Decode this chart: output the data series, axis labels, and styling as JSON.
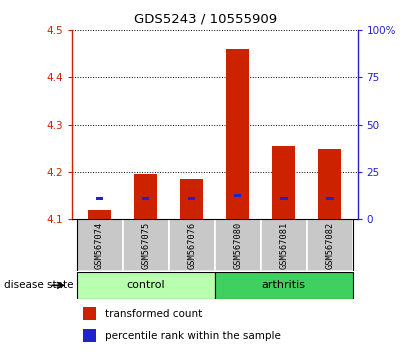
{
  "title": "GDS5243 / 10555909",
  "samples": [
    "GSM567074",
    "GSM567075",
    "GSM567076",
    "GSM567080",
    "GSM567081",
    "GSM567082"
  ],
  "red_values": [
    4.12,
    4.195,
    4.185,
    4.46,
    4.255,
    4.248
  ],
  "blue_values": [
    4.145,
    4.145,
    4.145,
    4.15,
    4.145,
    4.145
  ],
  "y_min": 4.1,
  "y_max": 4.5,
  "y_ticks_left": [
    4.1,
    4.2,
    4.3,
    4.4,
    4.5
  ],
  "y_ticks_right": [
    0,
    25,
    50,
    75,
    100
  ],
  "y_ticks_right_labels": [
    "0",
    "25",
    "50",
    "75",
    "100%"
  ],
  "groups": [
    {
      "label": "control",
      "indices": [
        0,
        1,
        2
      ],
      "color": "#b8ffb0"
    },
    {
      "label": "arthritis",
      "indices": [
        3,
        4,
        5
      ],
      "color": "#40d060"
    }
  ],
  "disease_state_label": "disease state",
  "bar_width": 0.5,
  "red_color": "#cc2200",
  "blue_color": "#2222cc",
  "legend": [
    {
      "color": "#cc2200",
      "label": "transformed count"
    },
    {
      "color": "#2222cc",
      "label": "percentile rank within the sample"
    }
  ],
  "axis_left_color": "#cc2200",
  "axis_right_color": "#2222cc",
  "plot_bg_color": "#ffffff",
  "sample_label_bg": "#c8c8c8",
  "figsize": [
    4.11,
    3.54
  ],
  "dpi": 100
}
